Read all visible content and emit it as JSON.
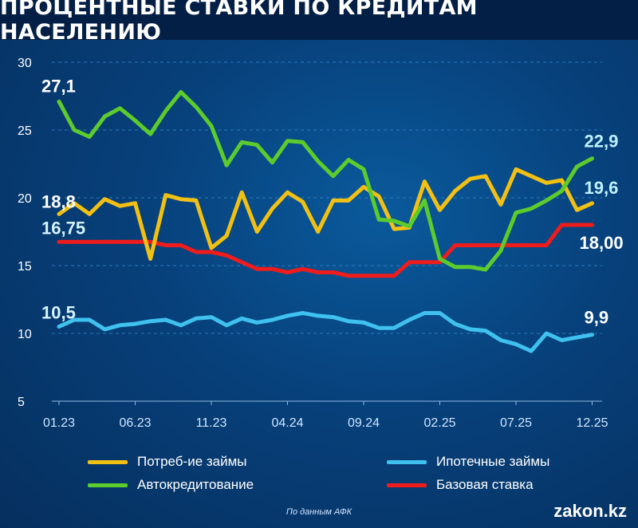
{
  "title": "ПРОЦЕНТНЫЕ СТАВКИ ПО КРЕДИТАМ НАСЕЛЕНИЮ",
  "chart_data": {
    "type": "line",
    "title": "ПРОЦЕНТНЫЕ СТАВКИ ПО КРЕДИТАМ НАСЕЛЕНИЮ",
    "xlabel": "",
    "ylabel": "",
    "ylim": [
      5,
      30
    ],
    "yticks": [
      "5",
      "10",
      "15",
      "20",
      "25",
      "30"
    ],
    "ytick_values": [
      5,
      10,
      15,
      20,
      25,
      30
    ],
    "xticks": [
      "01.23",
      "06.23",
      "11.23",
      "04.24",
      "09.24",
      "02.25",
      "07.25",
      "12.25"
    ],
    "xtick_index": [
      0,
      5,
      10,
      15,
      20,
      25,
      30,
      35
    ],
    "n_points": 36,
    "grid": "horizontal dashed",
    "legend_placement": "bottom",
    "series": [
      {
        "name": "Потреб-ие займы",
        "color": "#f2c013",
        "start_label": "18,8",
        "end_label": "19,6",
        "values": [
          18.8,
          19.6,
          18.8,
          19.9,
          19.4,
          19.6,
          15.5,
          20.2,
          19.9,
          19.8,
          16.3,
          17.2,
          20.4,
          17.5,
          19.2,
          20.4,
          19.7,
          17.5,
          19.8,
          19.8,
          20.8,
          20.1,
          17.7,
          17.8,
          21.2,
          19.1,
          20.5,
          21.4,
          21.6,
          19.5,
          22.1,
          21.6,
          21.1,
          21.3,
          19.1,
          19.6
        ]
      },
      {
        "name": "Автокредитование",
        "color": "#5ccc2c",
        "start_label": "27,1",
        "end_label": "22,9",
        "values": [
          27.1,
          25.0,
          24.5,
          26.0,
          26.6,
          25.7,
          24.7,
          26.4,
          27.8,
          26.7,
          25.3,
          22.4,
          24.1,
          23.9,
          22.6,
          24.2,
          24.1,
          22.7,
          21.6,
          22.8,
          22.1,
          18.4,
          18.3,
          17.9,
          19.8,
          15.5,
          14.9,
          14.9,
          14.7,
          16.1,
          18.9,
          19.2,
          19.8,
          20.5,
          22.3,
          22.9
        ]
      },
      {
        "name": "Ипотечные займы",
        "color": "#3fc1ef",
        "start_label": "10,5",
        "end_label": "9,9",
        "values": [
          10.5,
          11.0,
          11.0,
          10.3,
          10.6,
          10.7,
          10.9,
          11.0,
          10.6,
          11.1,
          11.2,
          10.6,
          11.1,
          10.8,
          11.0,
          11.3,
          11.5,
          11.3,
          11.2,
          10.9,
          10.8,
          10.4,
          10.4,
          11.0,
          11.5,
          11.5,
          10.7,
          10.3,
          10.2,
          9.5,
          9.2,
          8.7,
          10.0,
          9.5,
          9.7,
          9.9
        ]
      },
      {
        "name": "Базовая ставка",
        "color": "#ef1c1c",
        "start_label": "16,75",
        "end_label": "18,00",
        "values": [
          16.75,
          16.75,
          16.75,
          16.75,
          16.75,
          16.75,
          16.75,
          16.5,
          16.5,
          16.0,
          16.0,
          15.75,
          15.25,
          14.75,
          14.75,
          14.5,
          14.75,
          14.5,
          14.5,
          14.25,
          14.25,
          14.25,
          14.25,
          15.25,
          15.25,
          15.25,
          16.5,
          16.5,
          16.5,
          16.5,
          16.5,
          16.5,
          16.5,
          18.0,
          18.0,
          18.0
        ]
      }
    ]
  },
  "source": "По данным АФК",
  "brand": "zakon.kz"
}
